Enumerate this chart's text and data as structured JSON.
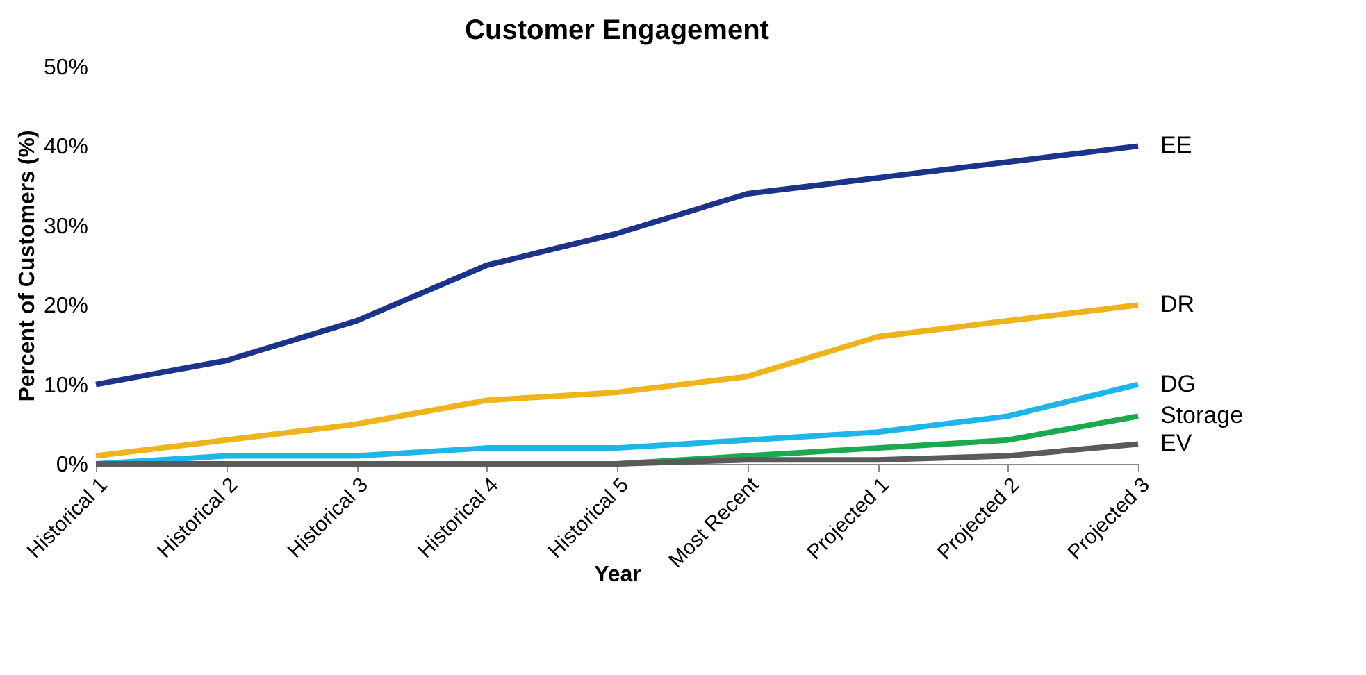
{
  "chart_data": {
    "type": "line",
    "title": "Customer Engagement",
    "xlabel": "Year",
    "ylabel": "Percent of Customers (%)",
    "categories": [
      "Historical 1",
      "Historical 2",
      "Historical 3",
      "Historical 4",
      "Historical 5",
      "Most Recent",
      "Projected 1",
      "Projected 2",
      "Projected 3"
    ],
    "series": [
      {
        "name": "EE",
        "color": "#1b3388",
        "values": [
          10,
          13,
          18,
          25,
          29,
          34,
          36,
          38,
          40
        ]
      },
      {
        "name": "DR",
        "color": "#efb31c",
        "values": [
          1,
          3,
          5,
          8,
          9,
          11,
          16,
          18,
          20
        ]
      },
      {
        "name": "DG",
        "color": "#1eb6e8",
        "values": [
          0,
          1,
          1,
          2,
          2,
          3,
          4,
          6,
          10
        ]
      },
      {
        "name": "Storage",
        "color": "#1ca84e",
        "values": [
          null,
          null,
          null,
          0,
          0,
          1,
          2,
          3,
          6
        ]
      },
      {
        "name": "EV",
        "color": "#5a5a5a",
        "values": [
          0,
          0,
          0,
          0,
          0,
          0.5,
          0.5,
          1,
          2.5
        ]
      }
    ],
    "ylim": [
      0,
      50
    ],
    "yticks": [
      {
        "value": 0,
        "label": "0%"
      },
      {
        "value": 10,
        "label": "10%"
      },
      {
        "value": 20,
        "label": "20%"
      },
      {
        "value": 30,
        "label": "30%"
      },
      {
        "value": 40,
        "label": "40%"
      },
      {
        "value": 50,
        "label": "50%"
      }
    ],
    "grid": false,
    "legend": "right",
    "marker": "none",
    "line_style": "solid"
  }
}
